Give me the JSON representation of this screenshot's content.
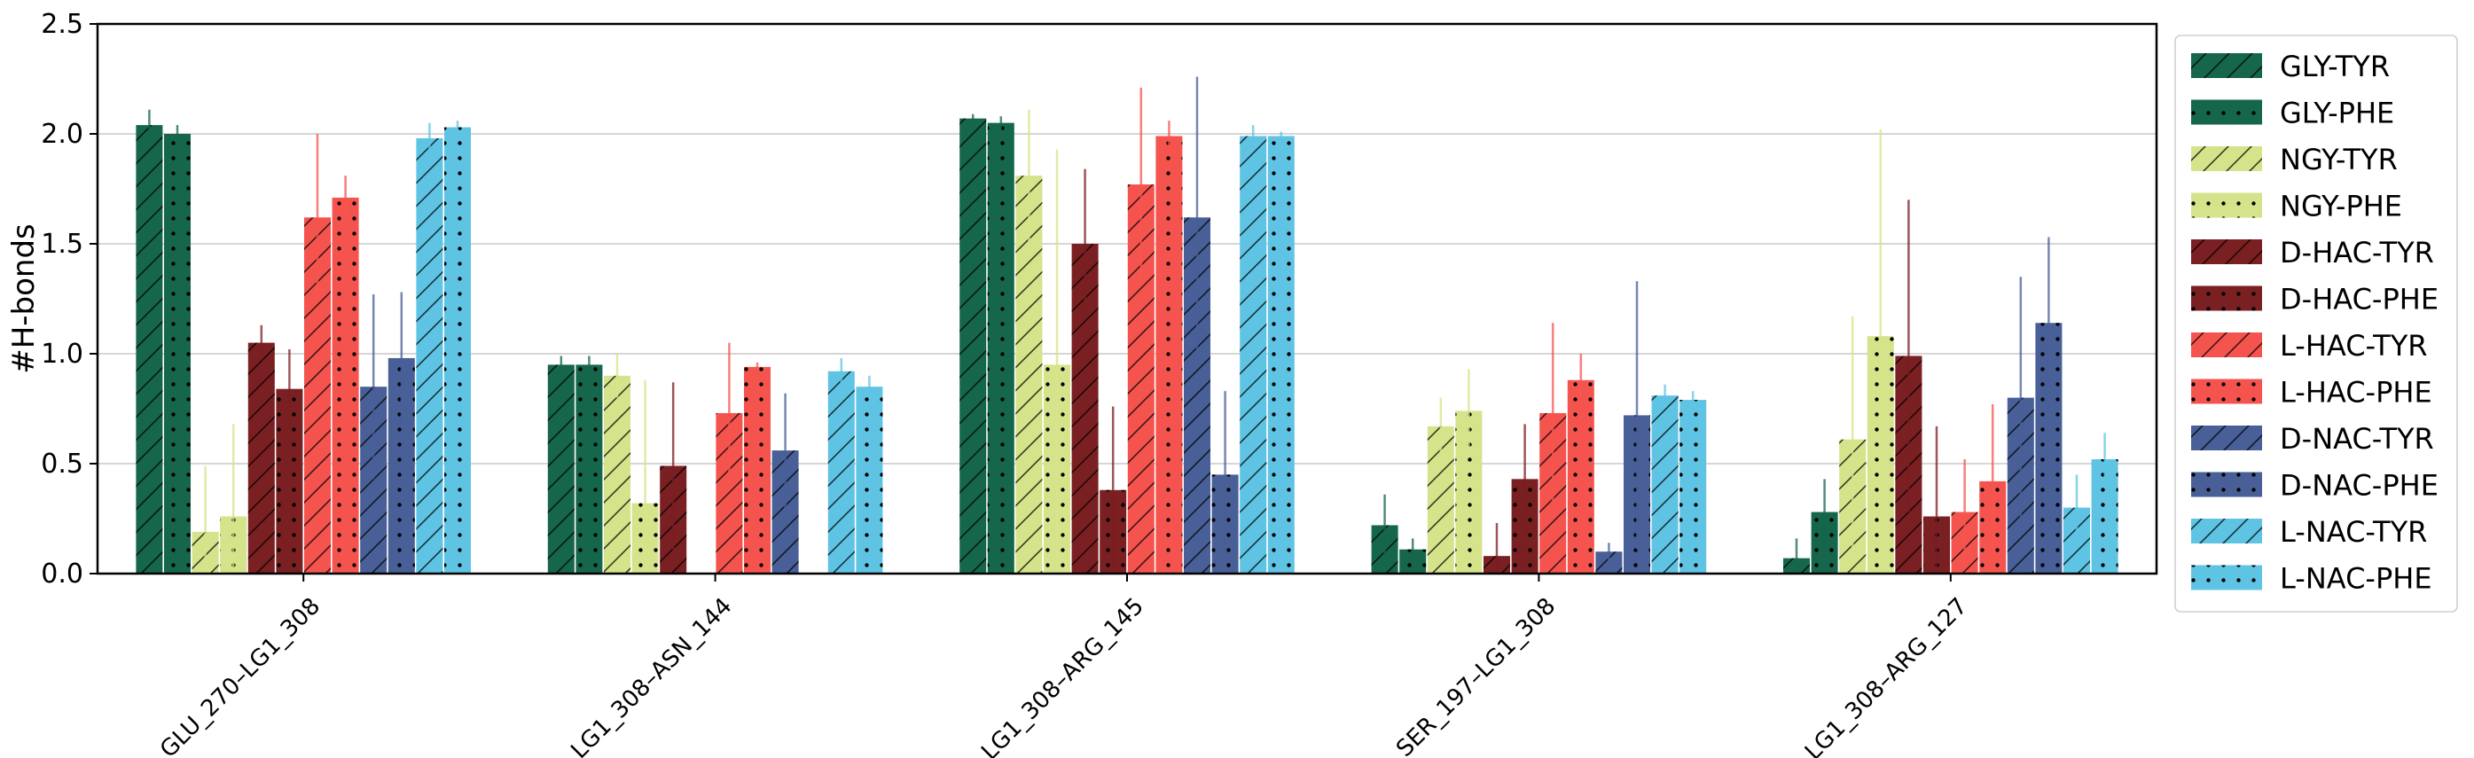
{
  "chart_data": {
    "type": "bar",
    "ylabel": "#H-bonds",
    "xlabel": "",
    "ylim": [
      0,
      2.5
    ],
    "yticks": [
      "0.0",
      "0.5",
      "1.0",
      "1.5",
      "2.0",
      "2.5"
    ],
    "grid": "horizontal",
    "legend_position": "outside-right",
    "categories": [
      "GLU_270–LG1_308",
      "LG1_308–ASN_144",
      "LG1_308–ARG_145",
      "SER_197–LG1_308",
      "LG1_308–ARG_127"
    ],
    "series": [
      {
        "name": "GLY-TYR",
        "color": "#15664a",
        "hatch": "slash",
        "values": [
          2.04,
          0.95,
          2.07,
          0.22,
          0.07
        ],
        "errors": [
          0.07,
          0.04,
          0.02,
          0.14,
          0.09
        ]
      },
      {
        "name": "GLY-PHE",
        "color": "#15664a",
        "hatch": "dots",
        "values": [
          2.0,
          0.95,
          2.05,
          0.11,
          0.28
        ],
        "errors": [
          0.04,
          0.04,
          0.03,
          0.05,
          0.15
        ]
      },
      {
        "name": "NGY-TYR",
        "color": "#d5e48a",
        "hatch": "slash",
        "values": [
          0.19,
          0.9,
          1.81,
          0.67,
          0.61
        ],
        "errors": [
          0.3,
          0.1,
          0.3,
          0.13,
          0.56
        ]
      },
      {
        "name": "NGY-PHE",
        "color": "#d5e48a",
        "hatch": "dots",
        "values": [
          0.26,
          0.32,
          0.95,
          0.74,
          1.08
        ],
        "errors": [
          0.42,
          0.56,
          0.98,
          0.19,
          0.94
        ]
      },
      {
        "name": "D-HAC-TYR",
        "color": "#7a1f22",
        "hatch": "slash",
        "values": [
          1.05,
          0.49,
          1.5,
          0.08,
          0.99
        ],
        "errors": [
          0.08,
          0.38,
          0.34,
          0.15,
          0.71
        ]
      },
      {
        "name": "D-HAC-PHE",
        "color": "#7a1f22",
        "hatch": "dots",
        "values": [
          0.84,
          0.0,
          0.38,
          0.43,
          0.26
        ],
        "errors": [
          0.18,
          0.0,
          0.38,
          0.25,
          0.41
        ]
      },
      {
        "name": "L-HAC-TYR",
        "color": "#f5544e",
        "hatch": "slash",
        "values": [
          1.62,
          0.73,
          1.77,
          0.73,
          0.28
        ],
        "errors": [
          0.38,
          0.32,
          0.44,
          0.41,
          0.24
        ]
      },
      {
        "name": "L-HAC-PHE",
        "color": "#f5544e",
        "hatch": "dots",
        "values": [
          1.71,
          0.94,
          1.99,
          0.88,
          0.42
        ],
        "errors": [
          0.1,
          0.02,
          0.07,
          0.12,
          0.35
        ]
      },
      {
        "name": "D-NAC-TYR",
        "color": "#485f97",
        "hatch": "slash",
        "values": [
          0.85,
          0.56,
          1.62,
          0.1,
          0.8
        ],
        "errors": [
          0.42,
          0.26,
          0.64,
          0.04,
          0.55
        ]
      },
      {
        "name": "D-NAC-PHE",
        "color": "#485f97",
        "hatch": "dots",
        "values": [
          0.98,
          0.0,
          0.45,
          0.72,
          1.14
        ],
        "errors": [
          0.3,
          0.0,
          0.38,
          0.61,
          0.39
        ]
      },
      {
        "name": "L-NAC-TYR",
        "color": "#5fc4e4",
        "hatch": "slash",
        "values": [
          1.98,
          0.92,
          1.99,
          0.81,
          0.3
        ],
        "errors": [
          0.07,
          0.06,
          0.05,
          0.05,
          0.15
        ]
      },
      {
        "name": "L-NAC-PHE",
        "color": "#5fc4e4",
        "hatch": "dots",
        "values": [
          2.03,
          0.85,
          1.99,
          0.79,
          0.52
        ],
        "errors": [
          0.03,
          0.05,
          0.02,
          0.04,
          0.12
        ]
      }
    ]
  }
}
